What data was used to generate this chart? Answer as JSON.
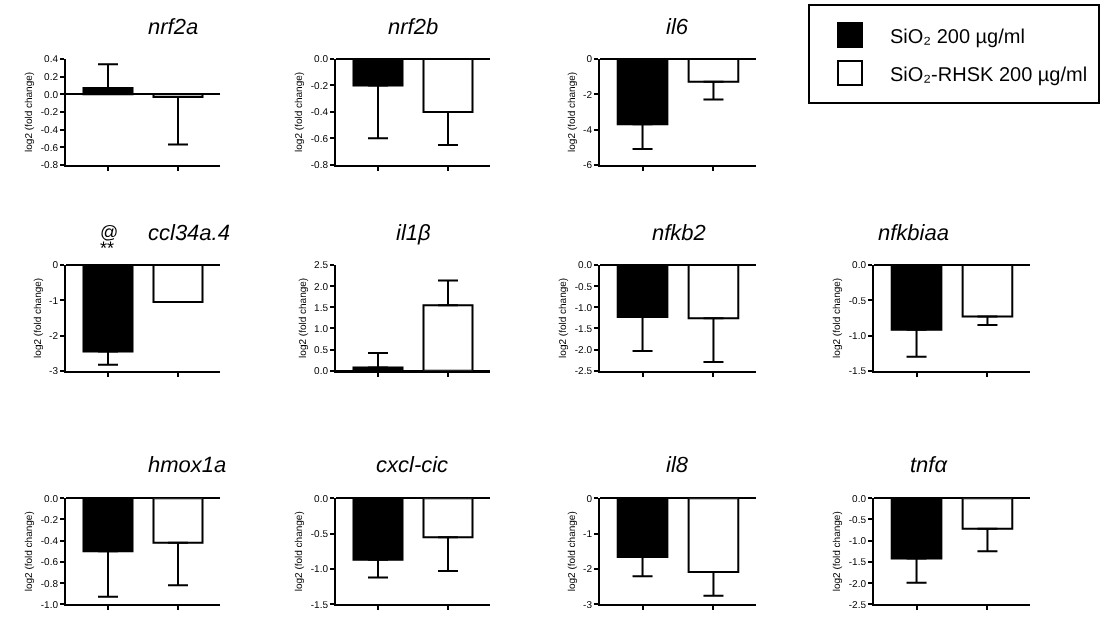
{
  "chart_data": [
    {
      "type": "bar",
      "title": "nrf2a",
      "ylabel": "log2 (fold change)",
      "categories": [
        null,
        null
      ],
      "legend": "top right",
      "ylim": [
        -0.8,
        0.4
      ],
      "yticks": [
        {
          "value": 0.4,
          "label": "0.4"
        },
        {
          "value": 0.2,
          "label": "0.2"
        },
        {
          "value": 0,
          "label": "0.0"
        },
        {
          "value": -0.2,
          "label": "-0.2"
        },
        {
          "value": -0.4,
          "label": "-0.4"
        },
        {
          "value": -0.6,
          "label": "-0.6"
        },
        {
          "value": -0.8,
          "label": "-0.8"
        }
      ],
      "series": [
        {
          "name": "SiO₂ 200 µg/ml",
          "color": "#000000",
          "values": [
            0.07,
            null
          ],
          "errors": [
            [
              0.07,
              0.34
            ],
            null
          ]
        },
        {
          "name": "SiO₂-RHSK 200 µg/ml",
          "color": "#ffffff",
          "values": [
            null,
            -0.03
          ],
          "errors": [
            null,
            [
              -0.57,
              -0.03
            ]
          ]
        }
      ]
    },
    {
      "type": "bar",
      "title": "nrf2b",
      "ylabel": "log2 (fold change)",
      "categories": [
        null,
        null
      ],
      "ylim": [
        -0.8,
        0
      ],
      "yticks": [
        {
          "value": 0,
          "label": "0.0"
        },
        {
          "value": -0.2,
          "label": "-0.2"
        },
        {
          "value": -0.4,
          "label": "-0.4"
        },
        {
          "value": -0.6,
          "label": "-0.6"
        },
        {
          "value": -0.8,
          "label": "-0.8"
        }
      ],
      "series": [
        {
          "color": "#000000",
          "values": [
            -0.2,
            null
          ],
          "errors": [
            [
              -0.6,
              -0.2
            ],
            null
          ]
        },
        {
          "color": "#ffffff",
          "values": [
            null,
            -0.4
          ],
          "errors": [
            null,
            [
              -0.65,
              -0.4
            ]
          ]
        }
      ]
    },
    {
      "type": "bar",
      "title": "il6",
      "ylabel": "log2 (fold change)",
      "categories": [
        null,
        null
      ],
      "ylim": [
        -6,
        0
      ],
      "yticks": [
        0,
        -2,
        -4,
        -6
      ],
      "series": [
        {
          "color": "#000000",
          "values": [
            -3.7,
            null
          ],
          "errors": [
            [
              -5.1,
              -3.7
            ],
            null
          ]
        },
        {
          "color": "#ffffff",
          "values": [
            null,
            -1.3
          ],
          "errors": [
            null,
            [
              -2.3,
              -1.3
            ]
          ]
        }
      ]
    },
    {
      "type": "bar",
      "title": "ccl34a.4",
      "ylabel": "log2 (fold change)",
      "categories": [
        null,
        null
      ],
      "ylim": [
        -3,
        0
      ],
      "yticks": [
        0,
        -1,
        -2,
        -3
      ],
      "annotations": [
        "@",
        "**"
      ],
      "series": [
        {
          "color": "#000000",
          "values": [
            -2.45,
            null
          ],
          "errors": [
            [
              -2.83,
              -2.45
            ],
            null
          ]
        },
        {
          "color": "#ffffff",
          "values": [
            null,
            -1.05
          ],
          "errors": [
            null,
            null
          ]
        }
      ]
    },
    {
      "type": "bar",
      "title": "il1β",
      "ylabel": "log2 (fold change)",
      "categories": [
        null,
        null
      ],
      "ylim": [
        0,
        2.5
      ],
      "yticks": [
        {
          "value": 0,
          "label": "0.0"
        },
        {
          "value": 0.5,
          "label": "0.5"
        },
        {
          "value": 1,
          "label": "1.0"
        },
        {
          "value": 1.5,
          "label": "1.5"
        },
        {
          "value": 2,
          "label": "2.0"
        },
        {
          "value": 2.5,
          "label": "2.5"
        }
      ],
      "series": [
        {
          "color": "#000000",
          "values": [
            0.08,
            null
          ],
          "errors": [
            [
              0.08,
              0.42
            ],
            null
          ]
        },
        {
          "color": "#ffffff",
          "values": [
            null,
            1.55
          ],
          "errors": [
            null,
            [
              1.55,
              2.13
            ]
          ]
        }
      ]
    },
    {
      "type": "bar",
      "title": "nfkb2",
      "ylabel": "log2 (fold change)",
      "categories": [
        null,
        null
      ],
      "ylim": [
        -2.5,
        0
      ],
      "yticks": [
        {
          "value": 0,
          "label": "0.0"
        },
        {
          "value": -0.5,
          "label": "-0.5"
        },
        {
          "value": -1,
          "label": "-1.0"
        },
        {
          "value": -1.5,
          "label": "-1.5"
        },
        {
          "value": -2,
          "label": "-2.0"
        },
        {
          "value": -2.5,
          "label": "-2.5"
        }
      ],
      "series": [
        {
          "color": "#000000",
          "values": [
            -1.23,
            null
          ],
          "errors": [
            [
              -2.03,
              -1.23
            ],
            null
          ]
        },
        {
          "color": "#ffffff",
          "values": [
            null,
            -1.26
          ],
          "errors": [
            null,
            [
              -2.29,
              -1.26
            ]
          ]
        }
      ]
    },
    {
      "type": "bar",
      "title": "nfkbiaa",
      "ylabel": "log2 (fold change)",
      "categories": [
        null,
        null
      ],
      "ylim": [
        -1.5,
        0
      ],
      "yticks": [
        {
          "value": 0,
          "label": "0.0"
        },
        {
          "value": -0.5,
          "label": "-0.5"
        },
        {
          "value": -1,
          "label": "-1.0"
        },
        {
          "value": -1.5,
          "label": "-1.5"
        }
      ],
      "series": [
        {
          "color": "#000000",
          "values": [
            -0.92,
            null
          ],
          "errors": [
            [
              -1.3,
              -0.92
            ],
            null
          ]
        },
        {
          "color": "#ffffff",
          "values": [
            null,
            -0.73
          ],
          "errors": [
            null,
            [
              -0.85,
              -0.73
            ]
          ]
        }
      ]
    },
    {
      "type": "bar",
      "title": "hmox1a",
      "ylabel": "log2 (fold change)",
      "categories": [
        null,
        null
      ],
      "ylim": [
        -1,
        0
      ],
      "yticks": [
        {
          "value": 0,
          "label": "0.0"
        },
        {
          "value": -0.2,
          "label": "-0.2"
        },
        {
          "value": -0.4,
          "label": "-0.4"
        },
        {
          "value": -0.6,
          "label": "-0.6"
        },
        {
          "value": -0.8,
          "label": "-0.8"
        },
        {
          "value": -1,
          "label": "-1.0"
        }
      ],
      "series": [
        {
          "color": "#000000",
          "values": [
            -0.5,
            null
          ],
          "errors": [
            [
              -0.93,
              -0.5
            ],
            null
          ]
        },
        {
          "color": "#ffffff",
          "values": [
            null,
            -0.42
          ],
          "errors": [
            null,
            [
              -0.82,
              -0.42
            ]
          ]
        }
      ]
    },
    {
      "type": "bar",
      "title": "cxcl-cic",
      "ylabel": "log2 (fold change)",
      "categories": [
        null,
        null
      ],
      "ylim": [
        -1.5,
        0
      ],
      "yticks": [
        {
          "value": 0,
          "label": "0.0"
        },
        {
          "value": -0.5,
          "label": "-0.5"
        },
        {
          "value": -1,
          "label": "-1.0"
        },
        {
          "value": -1.5,
          "label": "-1.5"
        }
      ],
      "series": [
        {
          "color": "#000000",
          "values": [
            -0.87,
            null
          ],
          "errors": [
            [
              -1.12,
              -0.87
            ],
            null
          ]
        },
        {
          "color": "#ffffff",
          "values": [
            null,
            -0.55
          ],
          "errors": [
            null,
            [
              -1.03,
              -0.55
            ]
          ]
        }
      ]
    },
    {
      "type": "bar",
      "title": "il8",
      "ylabel": "log2 (fold change)",
      "categories": [
        null,
        null
      ],
      "ylim": [
        -3,
        0
      ],
      "yticks": [
        0,
        -1,
        -2,
        -3
      ],
      "series": [
        {
          "color": "#000000",
          "values": [
            -1.66,
            null
          ],
          "errors": [
            [
              -2.21,
              -1.66
            ],
            null
          ]
        },
        {
          "color": "#ffffff",
          "values": [
            null,
            -2.09
          ],
          "errors": [
            null,
            [
              -2.76,
              -2.09
            ]
          ]
        }
      ]
    },
    {
      "type": "bar",
      "title": "tnfα",
      "ylabel": "log2 (fold change)",
      "categories": [
        null,
        null
      ],
      "ylim": [
        -2.5,
        0
      ],
      "yticks": [
        {
          "value": 0,
          "label": "0.0"
        },
        {
          "value": -0.5,
          "label": "-0.5"
        },
        {
          "value": -1,
          "label": "-1.0"
        },
        {
          "value": -1.5,
          "label": "-1.5"
        },
        {
          "value": -2,
          "label": "-2.0"
        },
        {
          "value": -2.5,
          "label": "-2.5"
        }
      ],
      "series": [
        {
          "color": "#000000",
          "values": [
            -1.42,
            null
          ],
          "errors": [
            [
              -1.99,
              -1.42
            ],
            null
          ]
        },
        {
          "color": "#ffffff",
          "values": [
            null,
            -0.72
          ],
          "errors": [
            null,
            [
              -1.25,
              -0.72
            ]
          ]
        }
      ]
    }
  ]
}
